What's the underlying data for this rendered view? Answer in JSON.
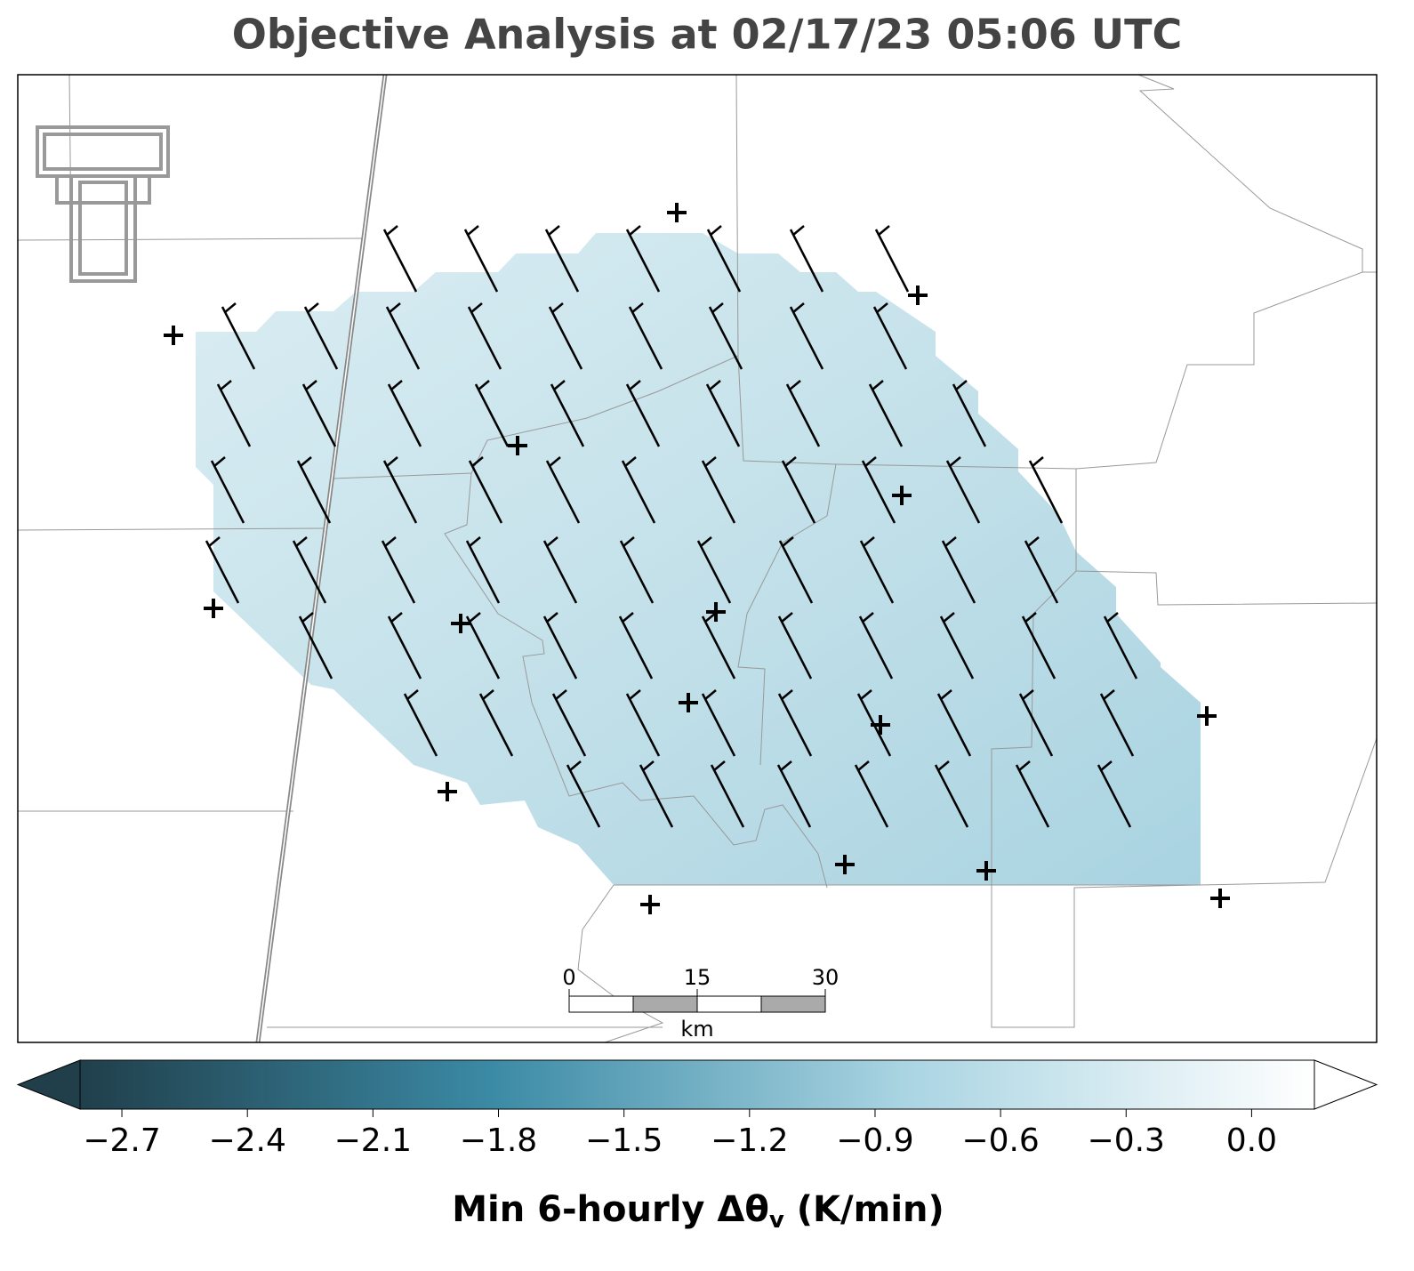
{
  "map": {
    "title": "Objective Analysis at 02/17/23 05:06 UTC",
    "colorbar": {
      "label": "Min 6-hourly Δθ",
      "label_sub": "v",
      "label_end": " (K/min)",
      "lim": [
        -2.8,
        0.15
      ],
      "ticks": [
        {
          "value": -2.7,
          "label": "−2.7"
        },
        {
          "value": -2.4,
          "label": "−2.4"
        },
        {
          "value": -2.1,
          "label": "−2.1"
        },
        {
          "value": -1.8,
          "label": "−1.8"
        },
        {
          "value": -1.5,
          "label": "−1.5"
        },
        {
          "value": -1.2,
          "label": "−1.2"
        },
        {
          "value": -0.9,
          "label": "−0.9"
        },
        {
          "value": -0.6,
          "label": "−0.6"
        },
        {
          "value": -0.3,
          "label": "−0.3"
        },
        {
          "value": 0.0,
          "label": "0.0"
        }
      ],
      "colors": [
        "#203f4b",
        "#3b8aa5",
        "#a9d4e2",
        "#ffffff"
      ]
    },
    "scale_bar": {
      "ticks": [
        0,
        15,
        30
      ],
      "unit": "km"
    }
  }
}
